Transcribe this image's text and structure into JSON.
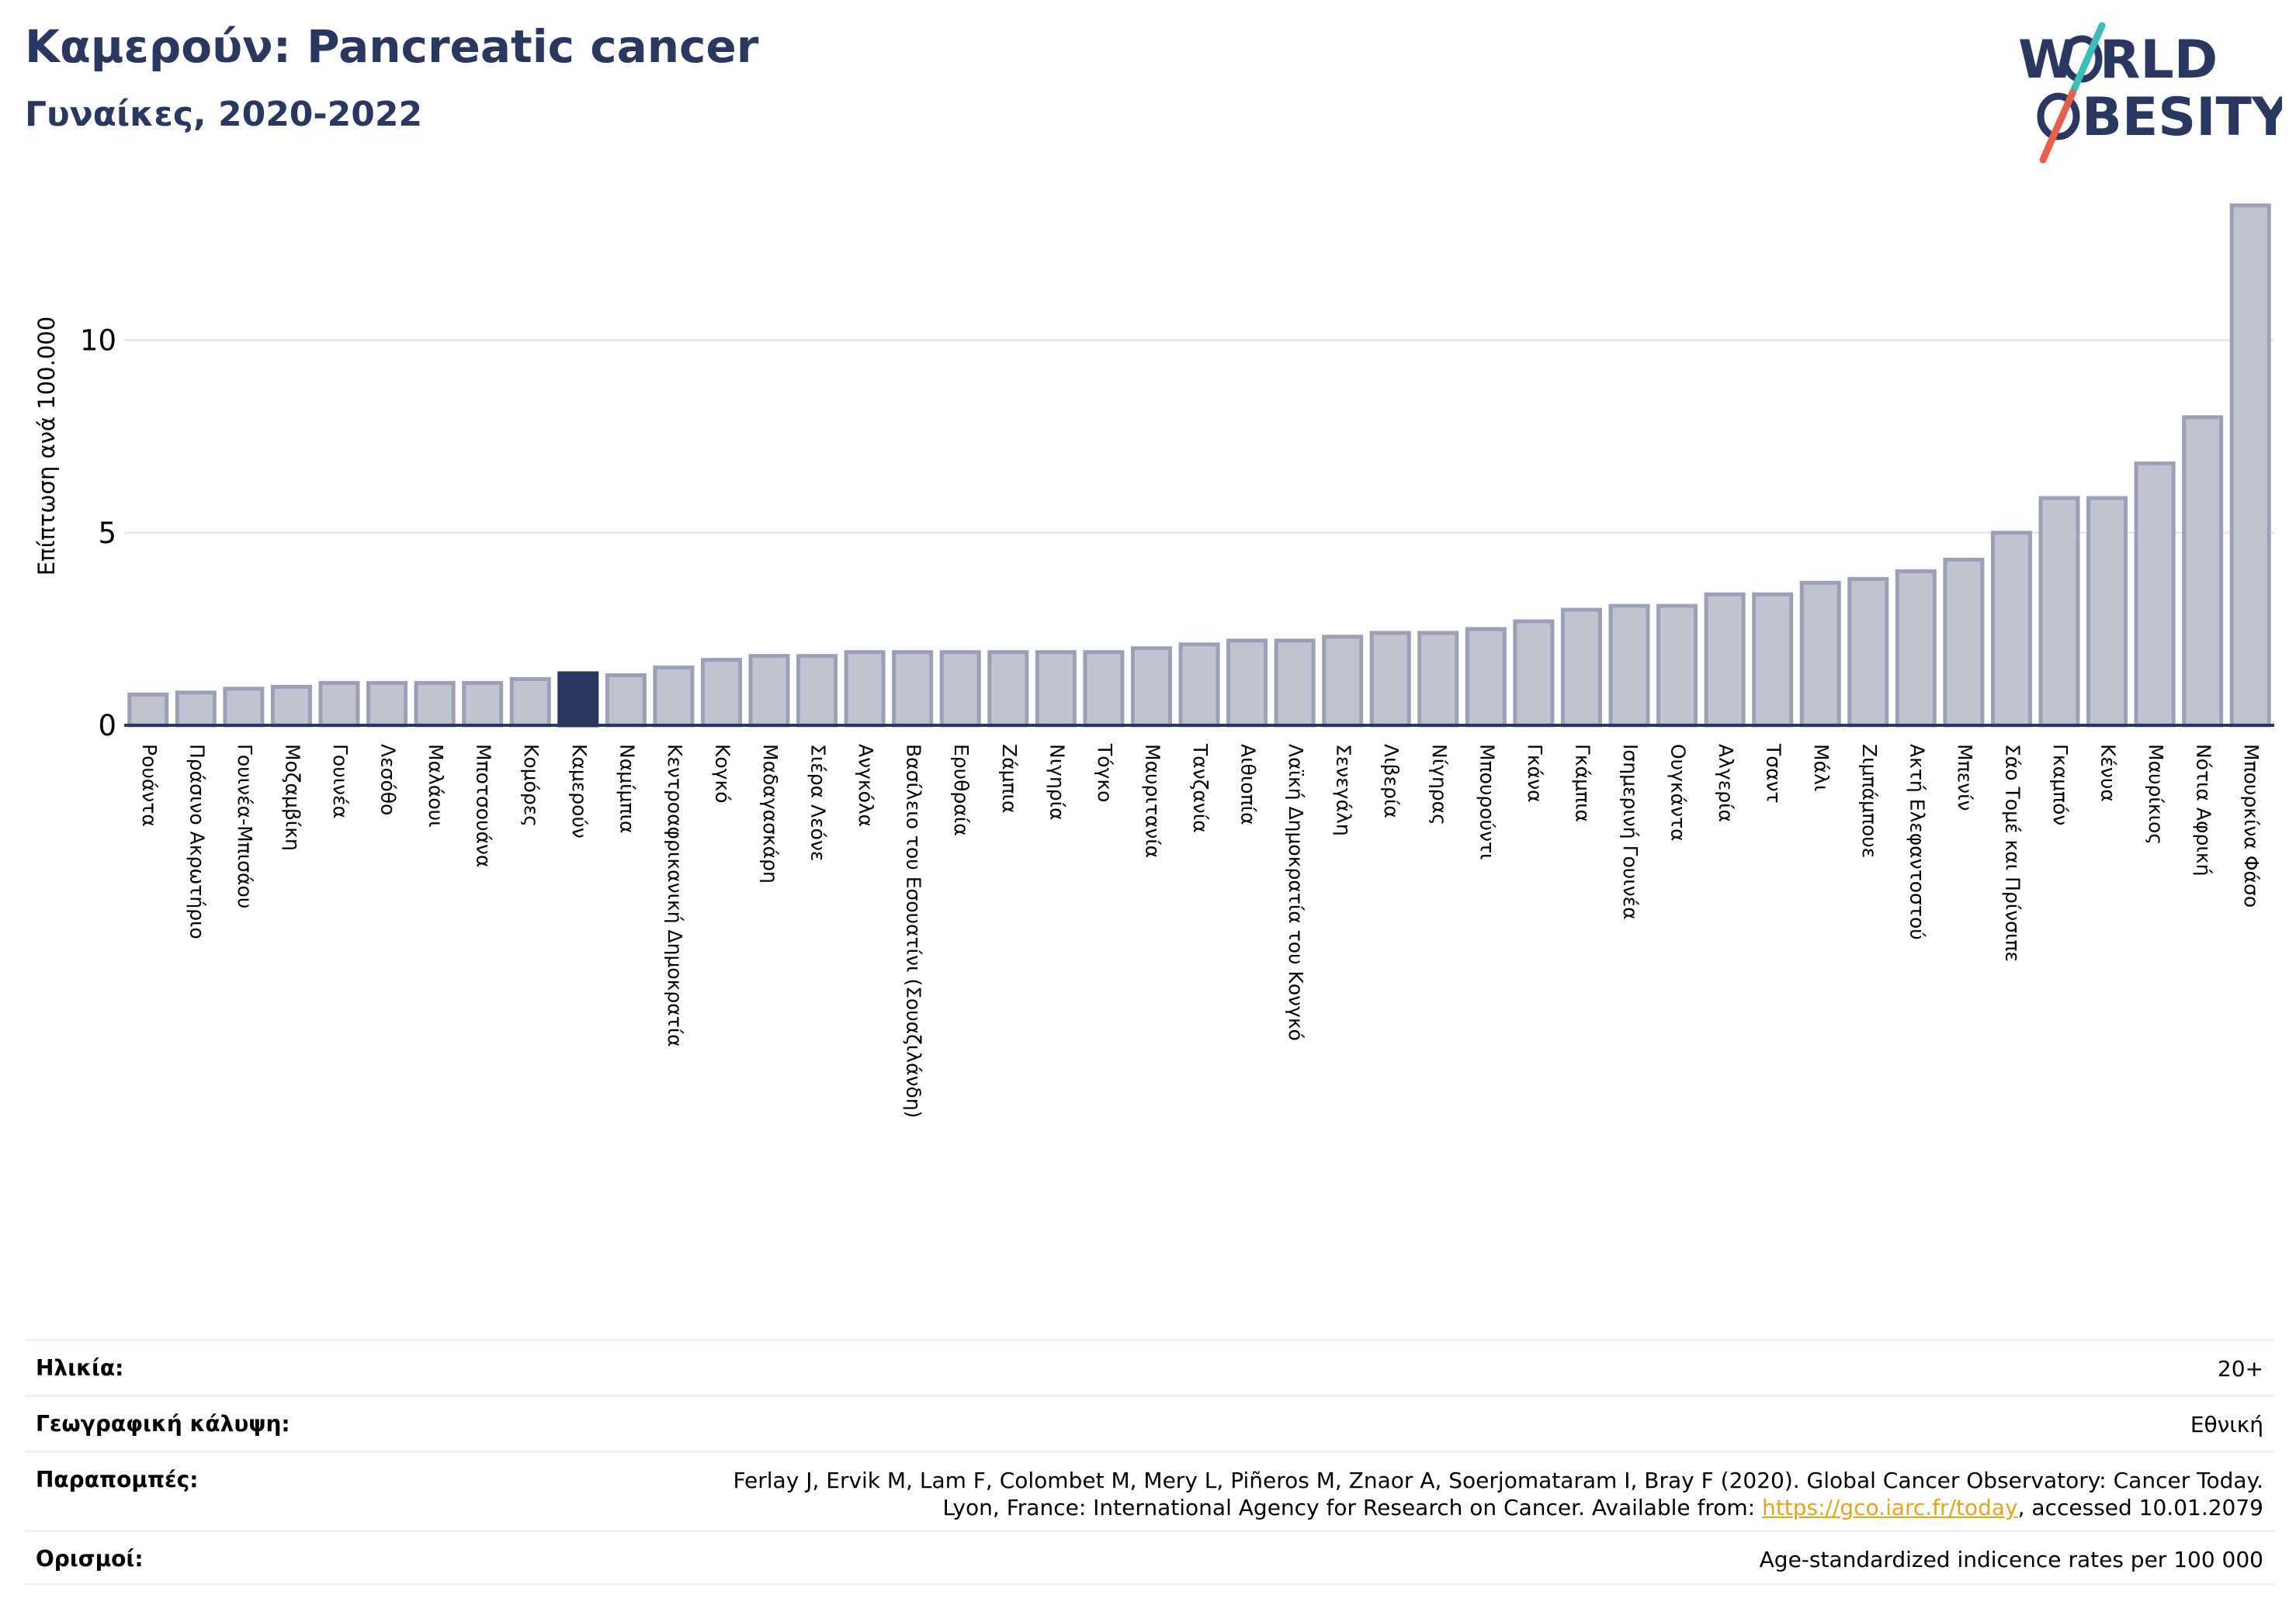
{
  "header": {
    "title": "Καμερούν: Pancreatic cancer",
    "subtitle": "Γυναίκες, 2020-2022"
  },
  "logo": {
    "line1_left": "W",
    "line1_right": "RLD",
    "line2_left": "",
    "line2_right": "BESITY",
    "brand_color": "#2a3761",
    "slash_color_top": "#3dbdb5",
    "slash_color_bottom": "#e8604c"
  },
  "chart_data": {
    "type": "bar",
    "ylabel": "Επίπτωση ανά 100.000",
    "ylim": [
      0,
      14
    ],
    "yticks": [
      0,
      5,
      10
    ],
    "grid": true,
    "highlight_category": "Καμερούν",
    "colors": {
      "bar": "#c0c4d1",
      "bar_edge": "#9ba0b8",
      "highlight": "#2a3761",
      "grid": "#e6e8ee",
      "axis": "#2a3761"
    },
    "categories": [
      "Ρουάντα",
      "Πράσινο Ακρωτήριο",
      "Γουινέα-Μπισάου",
      "Μοζαμβίκη",
      "Γουινέα",
      "Λεσόθο",
      "Μαλάουι",
      "Μποτσουάνα",
      "Κομόρες",
      "Καμερούν",
      "Ναμίμπια",
      "Κεντροαφρικανική Δημοκρατία",
      "Κογκό",
      "Μαδαγασκάρη",
      "Σιέρα Λεόνε",
      "Ανγκόλα",
      "Βασίλειο του Εσουατίνι (Σουαζιλάνδη)",
      "Ερυθραία",
      "Ζάμπια",
      "Νιγηρία",
      "Τόγκο",
      "Μαυριτανία",
      "Τανζανία",
      "Αιθιοπία",
      "Λαϊκή Δημοκρατία του Κονγκό",
      "Σενεγάλη",
      "Λιβερία",
      "Νίγηρας",
      "Μπουρούντι",
      "Γκάνα",
      "Γκάμπια",
      "Ισημερινή Γουινέα",
      "Ουγκάντα",
      "Αλγερία",
      "Τσαντ",
      "Μάλι",
      "Ζιμπάμπουε",
      "Ακτή Ελεφαντοστού",
      "Μπενίν",
      "Σάο Τομέ και Πρίνσιπε",
      "Γκαμπόν",
      "Κένυα",
      "Μαυρίκιος",
      "Νότια Αφρική",
      "Μπουρκίνα Φάσο"
    ],
    "values": [
      0.8,
      0.85,
      0.95,
      1.0,
      1.1,
      1.1,
      1.1,
      1.1,
      1.2,
      1.35,
      1.3,
      1.5,
      1.7,
      1.8,
      1.8,
      1.9,
      1.9,
      1.9,
      1.9,
      1.9,
      1.9,
      2.0,
      2.1,
      2.2,
      2.2,
      2.3,
      2.4,
      2.4,
      2.5,
      2.7,
      3.0,
      3.1,
      3.1,
      3.4,
      3.4,
      3.7,
      3.8,
      4.0,
      4.3,
      5.0,
      5.9,
      5.9,
      6.8,
      8.0,
      13.5
    ]
  },
  "info": {
    "age_label": "Ηλικία:",
    "age_value": "20+",
    "coverage_label": "Γεωγραφική κάλυψη:",
    "coverage_value": "Εθνική",
    "references_label": "Παραπομπές:",
    "references_line1": "Ferlay J, Ervik M, Lam F, Colombet M, Mery L, Piñeros M, Znaor A, Soerjomataram I, Bray F (2020). Global Cancer Observatory: Cancer Today.",
    "references_line2_pre": "Lyon, France: International Agency for Research on Cancer. Available from: ",
    "references_link": "https://gco.iarc.fr/today",
    "references_line2_post": ", accessed 10.01.2079",
    "definitions_label": "Ορισμοί:",
    "definitions_value": "Age-standardized indicence rates per 100 000"
  }
}
